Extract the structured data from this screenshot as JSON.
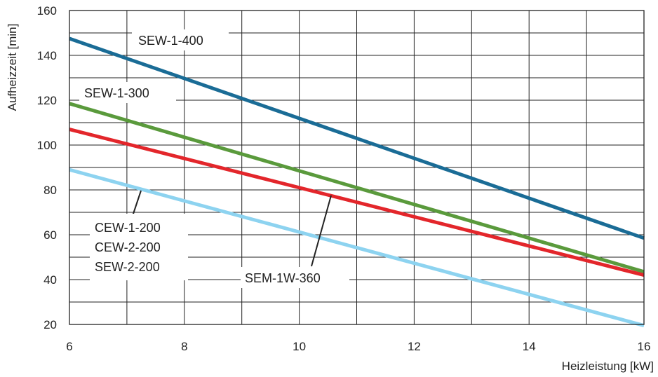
{
  "chart_data": {
    "type": "line",
    "xlabel": "Heizleistung [kW]",
    "ylabel": "Aufheizzeit [min]",
    "xlim": [
      6,
      16
    ],
    "ylim": [
      20,
      160
    ],
    "x_ticks": [
      6,
      8,
      10,
      12,
      14,
      16
    ],
    "y_ticks": [
      20,
      40,
      60,
      80,
      100,
      120,
      140,
      160
    ],
    "grid": true,
    "series": [
      {
        "name": "SEW-1-400",
        "x": [
          6,
          16
        ],
        "y": [
          147.5,
          58.5
        ],
        "color": "#1a6c96"
      },
      {
        "name": "SEW-1-300",
        "x": [
          6,
          16
        ],
        "y": [
          118.5,
          43.5
        ],
        "color": "#5a9a3c"
      },
      {
        "name": "SEM-1W-360",
        "x": [
          6,
          16
        ],
        "y": [
          107,
          42
        ],
        "color": "#e3262b"
      },
      {
        "name": "CEW-1-200",
        "x": [
          6,
          16
        ],
        "y": [
          89,
          19.5
        ],
        "color": "#8dd3f0"
      }
    ],
    "annotations": [
      "SEW-1-400",
      "SEW-1-300",
      "CEW-1-200",
      "CEW-2-200",
      "SEW-2-200",
      "SEM-1W-360"
    ]
  }
}
